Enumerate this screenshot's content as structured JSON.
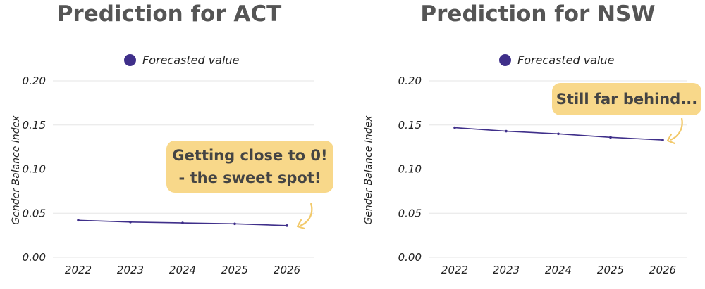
{
  "chart_data": [
    {
      "type": "line",
      "title": "Prediction for ACT",
      "ylabel": "Gender Balance Index",
      "xlabel": "",
      "legend": {
        "label": "Forecasted value",
        "placement": "top"
      },
      "x": [
        "2022",
        "2023",
        "2024",
        "2025",
        "2026"
      ],
      "series": [
        {
          "name": "Forecasted value",
          "values": [
            0.042,
            0.04,
            0.039,
            0.038,
            0.036
          ]
        }
      ],
      "ylim": [
        0,
        0.2
      ],
      "yticks": [
        "0.00",
        "0.05",
        "0.10",
        "0.15",
        "0.20"
      ],
      "grid": true,
      "annotation": {
        "lines": [
          "Getting close to 0!",
          "- the sweet spot!"
        ]
      }
    },
    {
      "type": "line",
      "title": "Prediction for NSW",
      "ylabel": "Gender Balance Index",
      "xlabel": "",
      "legend": {
        "label": "Forecasted value",
        "placement": "top"
      },
      "x": [
        "2022",
        "2023",
        "2024",
        "2025",
        "2026"
      ],
      "series": [
        {
          "name": "Forecasted value",
          "values": [
            0.147,
            0.143,
            0.14,
            0.136,
            0.133
          ]
        }
      ],
      "ylim": [
        0,
        0.2
      ],
      "yticks": [
        "0.00",
        "0.05",
        "0.10",
        "0.15",
        "0.20"
      ],
      "grid": true,
      "annotation": {
        "lines": [
          "Still far behind..."
        ]
      }
    }
  ],
  "colors": {
    "line": "#3f2f8a",
    "callout": "#f8d88a",
    "arrow": "#f2c96a",
    "grid": "#e6e6e6",
    "title": "#555555"
  }
}
